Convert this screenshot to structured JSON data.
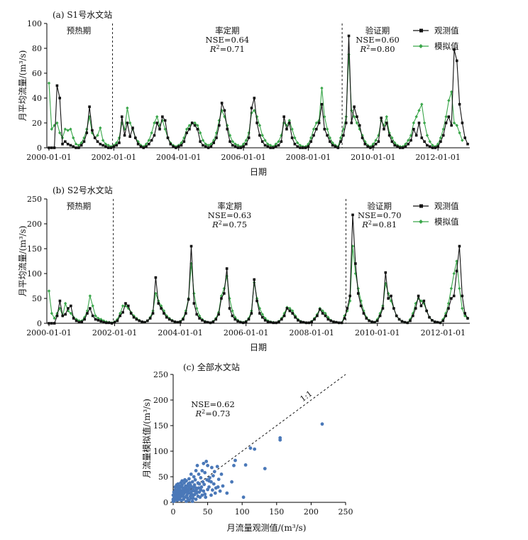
{
  "chart_data": [
    {
      "type": "line",
      "title": "(a) S1号水文站",
      "xlabel": "日期",
      "ylabel": "月平均流量/(m³/s)",
      "ylim": [
        0,
        100
      ],
      "yticks": [
        0,
        20,
        40,
        60,
        80,
        100
      ],
      "xticks": [
        "2000-01-01",
        "2002-01-01",
        "2004-01-01",
        "2006-01-01",
        "2008-01-01",
        "2010-01-01",
        "2012-01-01"
      ],
      "start_month": "2000-01",
      "period_dividers": [
        "2001-12",
        "2009-01"
      ],
      "periods": [
        {
          "name": "预热期",
          "lines": []
        },
        {
          "name": "率定期",
          "lines": [
            "NSE=0.64",
            "=0.71"
          ]
        },
        {
          "name": "验证期",
          "lines": [
            "NSE=0.60",
            "=0.80"
          ]
        }
      ],
      "legend_position": "top-right",
      "series": [
        {
          "name": "观测值",
          "color": "#111111",
          "marker": "square",
          "values": [
            0,
            0,
            0,
            50,
            40,
            3,
            5,
            3,
            2,
            1,
            0,
            0,
            2,
            5,
            12,
            33,
            14,
            8,
            5,
            3,
            2,
            1,
            0,
            0,
            1,
            2,
            4,
            25,
            10,
            20,
            9,
            16,
            8,
            3,
            1,
            0,
            1,
            3,
            6,
            10,
            20,
            15,
            25,
            22,
            8,
            3,
            1,
            0,
            1,
            2,
            5,
            12,
            15,
            20,
            18,
            15,
            5,
            2,
            1,
            0,
            1,
            4,
            8,
            18,
            36,
            30,
            15,
            5,
            2,
            1,
            0,
            0,
            1,
            3,
            8,
            32,
            40,
            20,
            10,
            5,
            2,
            1,
            0,
            0,
            1,
            2,
            5,
            25,
            15,
            20,
            8,
            3,
            1,
            0,
            0,
            0,
            1,
            5,
            10,
            15,
            20,
            35,
            15,
            10,
            5,
            2,
            1,
            0,
            5,
            10,
            20,
            90,
            20,
            33,
            25,
            18,
            8,
            3,
            1,
            0,
            1,
            3,
            5,
            24,
            15,
            20,
            10,
            5,
            2,
            1,
            0,
            0,
            1,
            3,
            6,
            15,
            10,
            20,
            8,
            5,
            2,
            1,
            0,
            0,
            1,
            5,
            10,
            20,
            25,
            18,
            79,
            70,
            35,
            20,
            8,
            3
          ]
        },
        {
          "name": "模拟值",
          "color": "#3aa64a",
          "marker": "diamond",
          "values": [
            52,
            15,
            18,
            20,
            12,
            8,
            15,
            14,
            15,
            8,
            3,
            2,
            4,
            8,
            15,
            25,
            12,
            8,
            10,
            16,
            6,
            3,
            2,
            1,
            2,
            4,
            8,
            20,
            15,
            32,
            20,
            15,
            8,
            5,
            2,
            1,
            3,
            6,
            12,
            20,
            25,
            18,
            22,
            15,
            8,
            4,
            2,
            1,
            2,
            4,
            8,
            15,
            18,
            20,
            20,
            18,
            12,
            6,
            3,
            2,
            3,
            6,
            12,
            22,
            30,
            25,
            18,
            10,
            5,
            3,
            2,
            1,
            3,
            6,
            12,
            28,
            30,
            25,
            18,
            10,
            6,
            3,
            2,
            1,
            3,
            5,
            10,
            20,
            18,
            22,
            15,
            8,
            4,
            2,
            1,
            1,
            3,
            8,
            15,
            20,
            22,
            48,
            25,
            15,
            8,
            4,
            2,
            1,
            8,
            15,
            25,
            75,
            30,
            25,
            20,
            15,
            10,
            5,
            2,
            1,
            3,
            6,
            10,
            22,
            18,
            25,
            12,
            8,
            4,
            2,
            1,
            1,
            3,
            6,
            10,
            20,
            25,
            30,
            35,
            20,
            10,
            5,
            2,
            1,
            3,
            8,
            15,
            25,
            38,
            45,
            20,
            18,
            12,
            6
          ]
        }
      ]
    },
    {
      "type": "line",
      "title": "(b) S2号水文站",
      "xlabel": "日期",
      "ylabel": "月平均流量/(m³/s)",
      "ylim": [
        0,
        250
      ],
      "yticks": [
        0,
        50,
        100,
        150,
        200,
        250
      ],
      "xticks": [
        "2000-01-01",
        "2002-01-01",
        "2004-01-01",
        "2006-01-01",
        "2008-01-01",
        "2010-01-01",
        "2012-01-01"
      ],
      "start_month": "2000-01",
      "period_dividers": [
        "2001-12",
        "2009-01"
      ],
      "periods": [
        {
          "name": "预热期",
          "lines": []
        },
        {
          "name": "率定期",
          "lines": [
            "NSE=0.63",
            "=0.75"
          ]
        },
        {
          "name": "验证期",
          "lines": [
            "NSE=0.70",
            "=0.81"
          ]
        }
      ],
      "legend_position": "top-right",
      "series": [
        {
          "name": "观测值",
          "color": "#111111",
          "marker": "square",
          "values": [
            0,
            0,
            0,
            15,
            45,
            15,
            18,
            30,
            35,
            10,
            5,
            2,
            3,
            8,
            20,
            30,
            15,
            8,
            6,
            4,
            2,
            1,
            1,
            0,
            2,
            5,
            15,
            22,
            40,
            35,
            20,
            12,
            8,
            5,
            3,
            2,
            5,
            10,
            20,
            92,
            40,
            30,
            20,
            12,
            8,
            5,
            3,
            2,
            3,
            8,
            20,
            48,
            155,
            40,
            18,
            10,
            6,
            3,
            2,
            1,
            3,
            8,
            18,
            50,
            60,
            110,
            30,
            15,
            8,
            4,
            2,
            1,
            3,
            8,
            20,
            88,
            45,
            20,
            12,
            6,
            3,
            2,
            1,
            1,
            3,
            8,
            15,
            30,
            25,
            20,
            12,
            6,
            3,
            2,
            1,
            1,
            3,
            8,
            15,
            28,
            20,
            15,
            8,
            5,
            3,
            2,
            1,
            1,
            10,
            30,
            55,
            218,
            120,
            60,
            35,
            20,
            10,
            5,
            3,
            2,
            5,
            15,
            30,
            102,
            50,
            55,
            30,
            15,
            8,
            4,
            2,
            1,
            5,
            15,
            30,
            55,
            35,
            45,
            25,
            12,
            6,
            3,
            2,
            1,
            5,
            15,
            30,
            50,
            55,
            105,
            155,
            55,
            20,
            10
          ]
        },
        {
          "name": "模拟值",
          "color": "#3aa64a",
          "marker": "diamond",
          "values": [
            65,
            20,
            10,
            20,
            30,
            15,
            40,
            25,
            20,
            12,
            8,
            5,
            5,
            12,
            25,
            55,
            35,
            15,
            10,
            8,
            5,
            3,
            2,
            1,
            3,
            8,
            20,
            35,
            35,
            30,
            22,
            15,
            10,
            6,
            3,
            2,
            5,
            12,
            25,
            60,
            45,
            35,
            25,
            15,
            10,
            6,
            3,
            2,
            4,
            10,
            25,
            50,
            120,
            60,
            30,
            15,
            8,
            4,
            2,
            1,
            4,
            10,
            22,
            55,
            70,
            95,
            50,
            25,
            12,
            6,
            3,
            2,
            4,
            10,
            25,
            82,
            50,
            30,
            18,
            10,
            5,
            3,
            2,
            1,
            4,
            10,
            20,
            32,
            30,
            25,
            15,
            8,
            4,
            2,
            1,
            1,
            4,
            10,
            18,
            30,
            25,
            20,
            12,
            6,
            3,
            2,
            1,
            1,
            15,
            25,
            45,
            155,
            100,
            70,
            45,
            25,
            12,
            6,
            3,
            2,
            8,
            20,
            35,
            80,
            60,
            45,
            30,
            15,
            8,
            4,
            2,
            1,
            8,
            20,
            40,
            50,
            45,
            40,
            25,
            12,
            6,
            3,
            2,
            1,
            8,
            20,
            40,
            70,
            100,
            125,
            70,
            30,
            15,
            10
          ]
        }
      ]
    },
    {
      "type": "scatter",
      "title": "(c) 全部水文站",
      "xlabel": "月流量观测值/(m³/s)",
      "ylabel": "月流量模拟值/(m³/s)",
      "xlim": [
        0,
        250
      ],
      "ylim": [
        0,
        250
      ],
      "xticks": [
        0,
        50,
        100,
        150,
        200,
        250
      ],
      "yticks": [
        0,
        50,
        100,
        150,
        200,
        250
      ],
      "reference_line_label": "1:1",
      "stats": [
        "NSE=0.62",
        "=0.73"
      ],
      "color": "#4a78b8",
      "points": [
        [
          216,
          153
        ],
        [
          155,
          126
        ],
        [
          155,
          122
        ],
        [
          133,
          66
        ],
        [
          118,
          104
        ],
        [
          112,
          106
        ],
        [
          105,
          73
        ],
        [
          102,
          10
        ],
        [
          90,
          82
        ],
        [
          88,
          72
        ],
        [
          85,
          40
        ],
        [
          78,
          18
        ],
        [
          72,
          32
        ],
        [
          70,
          55
        ],
        [
          66,
          45
        ],
        [
          64,
          70
        ],
        [
          62,
          28
        ],
        [
          60,
          60
        ],
        [
          58,
          52
        ],
        [
          56,
          68
        ],
        [
          55,
          40
        ],
        [
          52,
          42
        ],
        [
          50,
          72
        ],
        [
          50,
          25
        ],
        [
          48,
          80
        ],
        [
          46,
          58
        ],
        [
          45,
          35
        ],
        [
          44,
          76
        ],
        [
          42,
          62
        ],
        [
          41,
          30
        ],
        [
          40,
          48
        ],
        [
          38,
          20
        ],
        [
          37,
          55
        ],
        [
          36,
          38
        ],
        [
          35,
          72
        ],
        [
          34,
          26
        ],
        [
          33,
          62
        ],
        [
          32,
          44
        ],
        [
          31,
          15
        ],
        [
          30,
          50
        ],
        [
          30,
          30
        ],
        [
          29,
          8
        ],
        [
          28,
          40
        ],
        [
          27,
          22
        ],
        [
          26,
          55
        ],
        [
          25,
          34
        ],
        [
          25,
          12
        ],
        [
          24,
          28
        ],
        [
          23,
          46
        ],
        [
          22,
          18
        ],
        [
          22,
          36
        ],
        [
          21,
          8
        ],
        [
          20,
          26
        ],
        [
          20,
          14
        ],
        [
          19,
          42
        ],
        [
          18,
          20
        ],
        [
          18,
          32
        ],
        [
          17,
          10
        ],
        [
          16,
          24
        ],
        [
          16,
          38
        ],
        [
          15,
          16
        ],
        [
          15,
          6
        ],
        [
          14,
          28
        ],
        [
          14,
          20
        ],
        [
          13,
          12
        ],
        [
          13,
          34
        ],
        [
          12,
          22
        ],
        [
          12,
          4
        ],
        [
          11,
          16
        ],
        [
          11,
          30
        ],
        [
          10,
          10
        ],
        [
          10,
          24
        ],
        [
          9,
          18
        ],
        [
          9,
          6
        ],
        [
          8,
          28
        ],
        [
          8,
          14
        ],
        [
          8,
          20
        ],
        [
          7,
          8
        ],
        [
          7,
          26
        ],
        [
          6,
          16
        ],
        [
          6,
          12
        ],
        [
          6,
          4
        ],
        [
          5,
          22
        ],
        [
          5,
          10
        ],
        [
          5,
          30
        ],
        [
          4,
          14
        ],
        [
          4,
          8
        ],
        [
          4,
          18
        ],
        [
          3,
          12
        ],
        [
          3,
          6
        ],
        [
          3,
          24
        ],
        [
          2,
          4
        ],
        [
          2,
          16
        ],
        [
          2,
          10
        ],
        [
          1,
          2
        ],
        [
          1,
          8
        ],
        [
          1,
          20
        ],
        [
          0,
          6
        ],
        [
          0,
          14
        ],
        [
          0,
          2
        ],
        [
          26,
          8
        ],
        [
          28,
          2
        ],
        [
          33,
          6
        ],
        [
          36,
          12
        ],
        [
          42,
          14
        ],
        [
          47,
          10
        ],
        [
          55,
          14
        ],
        [
          23,
          4
        ],
        [
          19,
          2
        ],
        [
          17,
          28
        ],
        [
          21,
          32
        ],
        [
          24,
          38
        ],
        [
          27,
          16
        ],
        [
          29,
          24
        ],
        [
          31,
          34
        ],
        [
          34,
          18
        ],
        [
          37,
          28
        ],
        [
          39,
          10
        ],
        [
          44,
          22
        ],
        [
          46,
          16
        ],
        [
          52,
          30
        ],
        [
          57,
          24
        ],
        [
          61,
          18
        ],
        [
          68,
          22
        ],
        [
          3,
          30
        ],
        [
          5,
          34
        ],
        [
          7,
          36
        ],
        [
          9,
          32
        ],
        [
          11,
          38
        ],
        [
          13,
          42
        ],
        [
          15,
          26
        ],
        [
          17,
          44
        ],
        [
          19,
          22
        ],
        [
          21,
          20
        ],
        [
          23,
          24
        ],
        [
          25,
          18
        ],
        [
          27,
          30
        ],
        [
          29,
          14
        ],
        [
          31,
          22
        ],
        [
          33,
          28
        ],
        [
          35,
          20
        ],
        [
          38,
          36
        ],
        [
          40,
          24
        ],
        [
          43,
          40
        ],
        [
          49,
          44
        ],
        [
          53,
          48
        ],
        [
          59,
          36
        ],
        [
          65,
          30
        ]
      ]
    }
  ],
  "legend": {
    "observed": "观测值",
    "simulated": "模拟值"
  },
  "r2_prefix": "R",
  "r2_sup": "2"
}
